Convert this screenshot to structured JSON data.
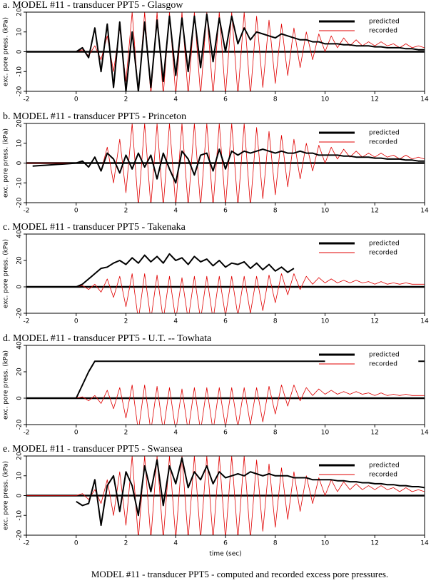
{
  "caption": "MODEL #11 - transducer PPT5 - computed and recorded excess pore pressures.",
  "chart_data": [
    {
      "type": "line",
      "title": "a. MODEL #11 - transducer PPT5 - Glasgow",
      "ylabel": "exc. pore press. (kPa)",
      "xlim": [
        -2,
        14
      ],
      "xticks": [
        -2,
        0,
        2,
        4,
        6,
        8,
        10,
        12,
        14
      ],
      "ylim": [
        -20,
        20
      ],
      "yticks": [
        -20,
        -10,
        0,
        10,
        20
      ],
      "legend": "upper right",
      "x": [
        -2,
        -1.75,
        -1.5,
        -1.25,
        -1,
        -0.75,
        -0.5,
        -0.25,
        0,
        0.25,
        0.5,
        0.75,
        1,
        1.25,
        1.5,
        1.75,
        2,
        2.25,
        2.5,
        2.75,
        3,
        3.25,
        3.5,
        3.75,
        4,
        4.25,
        4.5,
        4.75,
        5,
        5.25,
        5.5,
        5.75,
        6,
        6.25,
        6.5,
        6.75,
        7,
        7.25,
        7.5,
        7.75,
        8,
        8.25,
        8.5,
        8.75,
        9,
        9.25,
        9.5,
        9.75,
        10,
        10.25,
        10.5,
        10.75,
        11,
        11.25,
        11.5,
        11.75,
        12,
        12.25,
        12.5,
        12.75,
        13,
        13.25,
        13.5,
        13.75,
        14
      ],
      "series": [
        {
          "name": "predicted",
          "color": "#000000",
          "values": [
            0,
            0,
            0,
            0,
            0,
            0,
            0,
            0,
            0,
            2,
            -3,
            12,
            -10,
            14,
            -18,
            15,
            -20,
            10,
            -20,
            15,
            -18,
            16,
            -15,
            18,
            -12,
            17,
            -10,
            18,
            -8,
            19,
            -5,
            17,
            0,
            18,
            4,
            12,
            6,
            10,
            9,
            8,
            7,
            9,
            8,
            7,
            6,
            6,
            5,
            5,
            4,
            4,
            4,
            3.5,
            3.5,
            3,
            3,
            3,
            2.5,
            2.5,
            2,
            2,
            2,
            1.5,
            1.5,
            1,
            1
          ]
        },
        {
          "name": "recorded",
          "color": "#e00000",
          "values": [
            0,
            0,
            0,
            0,
            0,
            0,
            0,
            0,
            0,
            1,
            -2,
            3,
            -4,
            8,
            -10,
            12,
            -15,
            20,
            -22,
            20,
            -22,
            20,
            -22,
            20,
            -22,
            20,
            -22,
            20,
            -22,
            20,
            -22,
            20,
            -22,
            20,
            -22,
            20,
            -22,
            18,
            -18,
            16,
            -16,
            14,
            -12,
            12,
            -8,
            10,
            -4,
            9,
            0,
            8,
            2,
            7,
            3,
            6,
            3,
            5,
            3,
            5,
            3,
            4,
            2,
            4,
            2,
            3,
            2
          ]
        }
      ]
    },
    {
      "type": "line",
      "title": "b. MODEL #11 - transducer PPT5 - Princeton",
      "ylabel": "exc. pore press. (kPa)",
      "xlim": [
        -2,
        14
      ],
      "xticks": [
        -2,
        0,
        2,
        4,
        6,
        8,
        10,
        12,
        14
      ],
      "ylim": [
        -20,
        20
      ],
      "yticks": [
        -20,
        -10,
        0,
        10,
        20
      ],
      "legend": "upper right",
      "x": [
        -2,
        -1.75,
        -1.5,
        -1.25,
        -1,
        -0.75,
        -0.5,
        -0.25,
        0,
        0.25,
        0.5,
        0.75,
        1,
        1.25,
        1.5,
        1.75,
        2,
        2.25,
        2.5,
        2.75,
        3,
        3.25,
        3.5,
        3.75,
        4,
        4.25,
        4.5,
        4.75,
        5,
        5.25,
        5.5,
        5.75,
        6,
        6.25,
        6.5,
        6.75,
        7,
        7.25,
        7.5,
        7.75,
        8,
        8.25,
        8.5,
        8.75,
        9,
        9.25,
        9.5,
        9.75,
        10,
        10.25,
        10.5,
        10.75,
        11,
        11.25,
        11.5,
        11.75,
        12,
        12.25,
        12.5,
        12.75,
        13,
        13.25,
        13.5,
        13.75,
        14
      ],
      "series": [
        {
          "name": "predicted",
          "color": "#000000",
          "values": [
            null,
            -1.5,
            -1.3,
            -1.1,
            -0.9,
            -0.7,
            -0.5,
            -0.3,
            0,
            1,
            -2,
            3,
            -4,
            5,
            2,
            -5,
            4,
            -3,
            5,
            -2,
            4,
            -8,
            5,
            -3,
            -10,
            6,
            2,
            -6,
            4,
            5,
            -4,
            7,
            -3,
            6,
            4,
            6,
            5,
            6,
            7,
            6,
            5,
            6,
            5,
            5,
            6,
            5,
            5,
            4,
            4,
            4,
            4,
            3.5,
            3.5,
            3,
            3,
            3,
            2.5,
            2.5,
            2,
            2,
            2,
            1.5,
            1.5,
            1,
            1
          ]
        },
        {
          "name": "recorded",
          "color": "#e00000",
          "values": [
            0,
            0,
            0,
            0,
            0,
            0,
            0,
            0,
            0,
            1,
            -2,
            3,
            -4,
            8,
            -10,
            12,
            -15,
            20,
            -22,
            20,
            -22,
            20,
            -22,
            20,
            -22,
            20,
            -22,
            20,
            -22,
            20,
            -22,
            20,
            -22,
            20,
            -22,
            20,
            -22,
            18,
            -18,
            16,
            -16,
            14,
            -12,
            12,
            -8,
            10,
            -4,
            9,
            0,
            8,
            2,
            7,
            3,
            6,
            3,
            5,
            3,
            5,
            3,
            4,
            2,
            4,
            2,
            3,
            2
          ]
        }
      ]
    },
    {
      "type": "line",
      "title": "c. MODEL #11 - transducer PPT5 - Takenaka",
      "ylabel": "exc. pore press. (kPa)",
      "xlim": [
        -2,
        14
      ],
      "xticks": [
        -2,
        0,
        2,
        4,
        6,
        8,
        10,
        12,
        14
      ],
      "ylim": [
        -20,
        40
      ],
      "yticks": [
        -20,
        0,
        20,
        40
      ],
      "legend": "upper right",
      "x": [
        -2,
        -1.75,
        -1.5,
        -1.25,
        -1,
        -0.75,
        -0.5,
        -0.25,
        0,
        0.25,
        0.5,
        0.75,
        1,
        1.25,
        1.5,
        1.75,
        2,
        2.25,
        2.5,
        2.75,
        3,
        3.25,
        3.5,
        3.75,
        4,
        4.25,
        4.5,
        4.75,
        5,
        5.25,
        5.5,
        5.75,
        6,
        6.25,
        6.5,
        6.75,
        7,
        7.25,
        7.5,
        7.75,
        8,
        8.25,
        8.5,
        8.75,
        9,
        9.25,
        9.5,
        9.75,
        10,
        10.25,
        10.5,
        10.75,
        11,
        11.25,
        11.5,
        11.75,
        12,
        12.25,
        12.5,
        12.75,
        13,
        13.25,
        13.5,
        13.75,
        14
      ],
      "series": [
        {
          "name": "predicted",
          "color": "#000000",
          "values": [
            0,
            0,
            0,
            0,
            0,
            0,
            0,
            0,
            0,
            2,
            6,
            10,
            14,
            15,
            18,
            20,
            17,
            22,
            18,
            24,
            19,
            23,
            18,
            25,
            20,
            22,
            17,
            23,
            19,
            21,
            16,
            20,
            15,
            18,
            17,
            19,
            14,
            18,
            13,
            17,
            12,
            15,
            11,
            14,
            null,
            null,
            null,
            null,
            null,
            null,
            null,
            null,
            null,
            null,
            null,
            null,
            null,
            null,
            null,
            null,
            null,
            null,
            null,
            null,
            null
          ]
        },
        {
          "name": "recorded",
          "color": "#e00000",
          "values": [
            0,
            0,
            0,
            0,
            0,
            0,
            0,
            0,
            0,
            1,
            -2,
            2,
            -4,
            6,
            -8,
            8,
            -15,
            10,
            -25,
            10,
            -25,
            9,
            -25,
            8,
            -25,
            7,
            -25,
            8,
            -25,
            8,
            -25,
            8,
            -22,
            8,
            -22,
            8,
            -20,
            8,
            -18,
            9,
            -12,
            10,
            -6,
            10,
            -2,
            8,
            2,
            7,
            3,
            6,
            3,
            5,
            3,
            5,
            3,
            4,
            2,
            4,
            2,
            3,
            2,
            3,
            2,
            2,
            2
          ]
        }
      ]
    },
    {
      "type": "line",
      "title": "d. MODEL #11 - transducer PPT5 - U.T. -- Towhata",
      "ylabel": "exc. pore press. (kPa)",
      "xlim": [
        -2,
        14
      ],
      "xticks": [
        -2,
        0,
        2,
        4,
        6,
        8,
        10,
        12,
        14
      ],
      "ylim": [
        -20,
        40
      ],
      "yticks": [
        -20,
        0,
        20,
        40
      ],
      "legend": "upper right",
      "x": [
        -2,
        -1.75,
        -1.5,
        -1.25,
        -1,
        -0.75,
        -0.5,
        -0.25,
        0,
        0.25,
        0.5,
        0.75,
        1,
        1.25,
        1.5,
        1.75,
        2,
        2.25,
        2.5,
        2.75,
        3,
        3.25,
        3.5,
        3.75,
        4,
        4.25,
        4.5,
        4.75,
        5,
        5.25,
        5.5,
        5.75,
        6,
        6.25,
        6.5,
        6.75,
        7,
        7.25,
        7.5,
        7.75,
        8,
        8.25,
        8.5,
        8.75,
        9,
        9.25,
        9.5,
        9.75,
        10,
        10.25,
        10.5,
        10.75,
        11,
        11.25,
        11.5,
        11.75,
        12,
        12.25,
        12.5,
        12.75,
        13,
        13.25,
        13.5,
        13.75,
        14
      ],
      "series": [
        {
          "name": "predicted",
          "color": "#000000",
          "values": [
            0,
            0,
            0,
            0,
            0,
            0,
            0,
            0,
            0,
            10,
            20,
            28,
            28,
            28,
            28,
            28,
            28,
            28,
            28,
            28,
            28,
            28,
            28,
            28,
            28,
            28,
            28,
            28,
            28,
            28,
            28,
            28,
            28,
            28,
            28,
            28,
            28,
            28,
            28,
            28,
            28,
            28,
            28,
            28,
            28,
            28,
            28,
            28,
            28,
            null,
            null,
            null,
            null,
            null,
            null,
            null,
            null,
            null,
            null,
            null,
            null,
            null,
            null,
            28,
            28
          ]
        },
        {
          "name": "recorded",
          "color": "#e00000",
          "values": [
            0,
            0,
            0,
            0,
            0,
            0,
            0,
            0,
            0,
            1,
            -2,
            2,
            -4,
            6,
            -8,
            8,
            -15,
            10,
            -25,
            10,
            -25,
            9,
            -25,
            8,
            -25,
            7,
            -25,
            8,
            -25,
            8,
            -25,
            8,
            -22,
            8,
            -22,
            8,
            -20,
            8,
            -18,
            9,
            -12,
            10,
            -6,
            10,
            -2,
            8,
            2,
            7,
            3,
            6,
            3,
            5,
            3,
            5,
            3,
            4,
            2,
            4,
            2,
            3,
            2,
            3,
            2,
            2,
            2
          ]
        }
      ]
    },
    {
      "type": "line",
      "title": "e. MODEL #11 - transducer PPT5 - Swansea",
      "ylabel": "exc. pore press. (kPa)",
      "xlabel": "time (sec)",
      "xlim": [
        -2,
        14
      ],
      "xticks": [
        -2,
        0,
        2,
        4,
        6,
        8,
        10,
        12,
        14
      ],
      "ylim": [
        -20,
        20
      ],
      "yticks": [
        -20,
        -10,
        0,
        10,
        20
      ],
      "legend": "upper right",
      "x": [
        -2,
        -1.75,
        -1.5,
        -1.25,
        -1,
        -0.75,
        -0.5,
        -0.25,
        0,
        0.25,
        0.5,
        0.75,
        1,
        1.25,
        1.5,
        1.75,
        2,
        2.25,
        2.5,
        2.75,
        3,
        3.25,
        3.5,
        3.75,
        4,
        4.25,
        4.5,
        4.75,
        5,
        5.25,
        5.5,
        5.75,
        6,
        6.25,
        6.5,
        6.75,
        7,
        7.25,
        7.5,
        7.75,
        8,
        8.25,
        8.5,
        8.75,
        9,
        9.25,
        9.5,
        9.75,
        10,
        10.25,
        10.5,
        10.75,
        11,
        11.25,
        11.5,
        11.75,
        12,
        12.25,
        12.5,
        12.75,
        13,
        13.25,
        13.5,
        13.75,
        14
      ],
      "series": [
        {
          "name": "predicted",
          "color": "#000000",
          "values": [
            null,
            null,
            null,
            null,
            null,
            null,
            null,
            null,
            -3,
            -5,
            -4,
            8,
            -15,
            5,
            10,
            -8,
            12,
            5,
            -10,
            15,
            2,
            18,
            -5,
            15,
            6,
            19,
            4,
            12,
            8,
            15,
            6,
            12,
            9,
            10,
            11,
            10,
            12,
            11,
            10,
            11,
            10,
            10,
            10,
            9,
            9,
            9,
            8,
            8,
            8,
            8,
            7.5,
            7.5,
            7,
            7,
            6.5,
            6.5,
            6,
            6,
            5.5,
            5.5,
            5,
            5,
            4.5,
            4.5,
            4
          ]
        },
        {
          "name": "recorded",
          "color": "#e00000",
          "values": [
            0,
            0,
            0,
            0,
            0,
            0,
            0,
            0,
            0,
            1,
            -2,
            3,
            -4,
            8,
            -10,
            12,
            -15,
            20,
            -22,
            20,
            -22,
            20,
            -22,
            20,
            -22,
            20,
            -22,
            20,
            -22,
            20,
            -22,
            20,
            -22,
            20,
            -22,
            20,
            -22,
            18,
            -18,
            16,
            -16,
            14,
            -12,
            12,
            -8,
            10,
            -4,
            9,
            0,
            8,
            2,
            7,
            3,
            6,
            3,
            5,
            3,
            5,
            3,
            4,
            2,
            4,
            2,
            3,
            2
          ]
        }
      ]
    }
  ]
}
